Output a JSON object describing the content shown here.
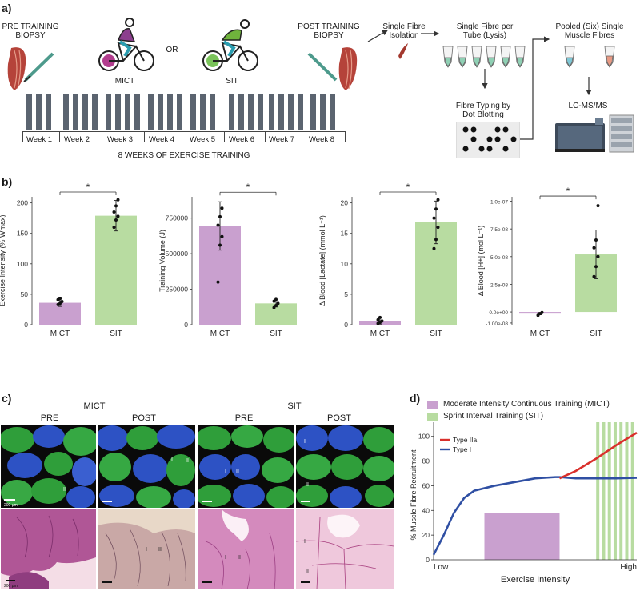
{
  "panel_a": {
    "letter": "a)",
    "pre_biopsy": "PRE TRAINING\nBIOPSY",
    "pre_biopsy_l1": "PRE TRAINING",
    "pre_biopsy_l2": "BIOPSY",
    "mict_label": "MICT",
    "or_label": "OR",
    "sit_label": "SIT",
    "post_biopsy_l1": "POST TRAINING",
    "post_biopsy_l2": "BIOPSY",
    "single_fibre_l1": "Single Fibre",
    "single_fibre_l2": "Isolation",
    "per_tube_l1": "Single Fibre per",
    "per_tube_l2": "Tube (Lysis)",
    "pooled_l1": "Pooled (Six) Single",
    "pooled_l2": "Muscle Fibres",
    "typing_l1": "Fibre Typing by",
    "typing_l2": "Dot Blotting",
    "lcms": "LC-MS/MS",
    "weeks": [
      "Week 1",
      "Week 2",
      "Week 3",
      "Week 4",
      "Week 5",
      "Week 6",
      "Week 7",
      "Week 8"
    ],
    "footer": "8 WEEKS OF EXERCISE TRAINING",
    "colors": {
      "mict": "#c9a0cf",
      "sit": "#b8dca1",
      "session": "#5b6470"
    }
  },
  "panel_b": {
    "letter": "b)",
    "sig": "*",
    "chart_data": [
      {
        "type": "bar",
        "ylabel": "Exercise Intensity (% Wmax)",
        "categories": [
          "MICT",
          "SIT"
        ],
        "values": [
          36,
          179
        ],
        "errors": [
          6,
          25
        ],
        "ylim": [
          0,
          210
        ],
        "yticks": [
          "0",
          "50",
          "100",
          "150",
          "200"
        ],
        "ytick_values": [
          0,
          50,
          100,
          150,
          200
        ],
        "points": [
          [
            33,
            35,
            38,
            41,
            43
          ],
          [
            160,
            172,
            178,
            185,
            195,
            205
          ]
        ]
      },
      {
        "type": "bar",
        "ylabel": "Training Volume (J)",
        "categories": [
          "MICT",
          "SIT"
        ],
        "values": [
          695000,
          150000
        ],
        "errors": [
          170000,
          25000
        ],
        "ylim": [
          0,
          900000
        ],
        "yticks": [
          "0",
          "250000",
          "500000",
          "750000"
        ],
        "ytick_values": [
          0,
          250000,
          500000,
          750000
        ],
        "points": [
          [
            300000,
            560000,
            620000,
            700000,
            760000,
            820000
          ],
          [
            120000,
            135000,
            150000,
            165000,
            178000
          ]
        ]
      },
      {
        "type": "bar",
        "ylabel": "Δ Blood [Lactate] (mmol L⁻¹)",
        "categories": [
          "MICT",
          "SIT"
        ],
        "values": [
          0.6,
          16.8
        ],
        "errors": [
          0.5,
          3.5
        ],
        "ylim": [
          0,
          21
        ],
        "yticks": [
          "0",
          "5",
          "10",
          "15",
          "20"
        ],
        "ytick_values": [
          0,
          5,
          10,
          15,
          20
        ],
        "points": [
          [
            0.2,
            0.4,
            0.6,
            0.8,
            1.2
          ],
          [
            12.5,
            14,
            16,
            17.5,
            19,
            20.5
          ]
        ]
      },
      {
        "type": "bar",
        "ylabel": "Δ Blood [H+] (mol L⁻¹)",
        "categories": [
          "MICT",
          "SIT"
        ],
        "values": [
          -0.15,
          5.2
        ],
        "errors": [
          0.1,
          2.2
        ],
        "ylim": [
          -1.15,
          10.4
        ],
        "yticks": [
          "-1.00e-08",
          "0.0e+00",
          "2.5e-08",
          "5.0e-08",
          "7.5e-08",
          "1.0e-07"
        ],
        "ytick_values": [
          -1,
          0,
          2.5,
          5,
          7.5,
          10
        ],
        "points": [
          [
            -0.3,
            -0.15,
            -0.05
          ],
          [
            3.2,
            4.1,
            5.0,
            5.8,
            6.5,
            9.6
          ]
        ]
      }
    ]
  },
  "panel_c": {
    "letter": "c)",
    "mict": "MICT",
    "sit": "SIT",
    "pre": "PRE",
    "post": "POST",
    "scale": "200 μm",
    "fibre_i": "I",
    "fibre_ii": "II"
  },
  "panel_d": {
    "letter": "d)",
    "legend_mict": "Moderate Intensity Continuous Training (MICT)",
    "legend_sit": "Sprint Interval Training (SIT)",
    "chart_data": {
      "type": "line",
      "ylabel": "% Muscle Fibre Recruitment",
      "xlabel": "Exercise Intensity",
      "x_low": "Low",
      "x_high": "High",
      "ylim": [
        0,
        105
      ],
      "yticks": [
        "0",
        "20",
        "40",
        "60",
        "80",
        "100"
      ],
      "ytick_values": [
        0,
        20,
        40,
        60,
        80,
        100
      ],
      "series": [
        {
          "name": "Type IIa",
          "color": "#d9302c",
          "x": [
            0.62,
            0.7,
            0.8,
            0.9,
            1.0
          ],
          "y": [
            66,
            72,
            82,
            93,
            103
          ]
        },
        {
          "name": "Type I",
          "color": "#2f4fa3",
          "x": [
            0,
            0.05,
            0.1,
            0.15,
            0.2,
            0.3,
            0.4,
            0.5,
            0.6,
            0.62,
            0.7,
            0.8,
            0.9,
            1.0
          ],
          "y": [
            4,
            20,
            38,
            50,
            56,
            60,
            63,
            66,
            67,
            67,
            66,
            66,
            66,
            66.5
          ]
        }
      ],
      "mict_zone": {
        "x": [
          0.25,
          0.62
        ],
        "y_top": 38
      },
      "sit_zone": {
        "x": [
          0.8,
          1.0
        ]
      }
    }
  }
}
